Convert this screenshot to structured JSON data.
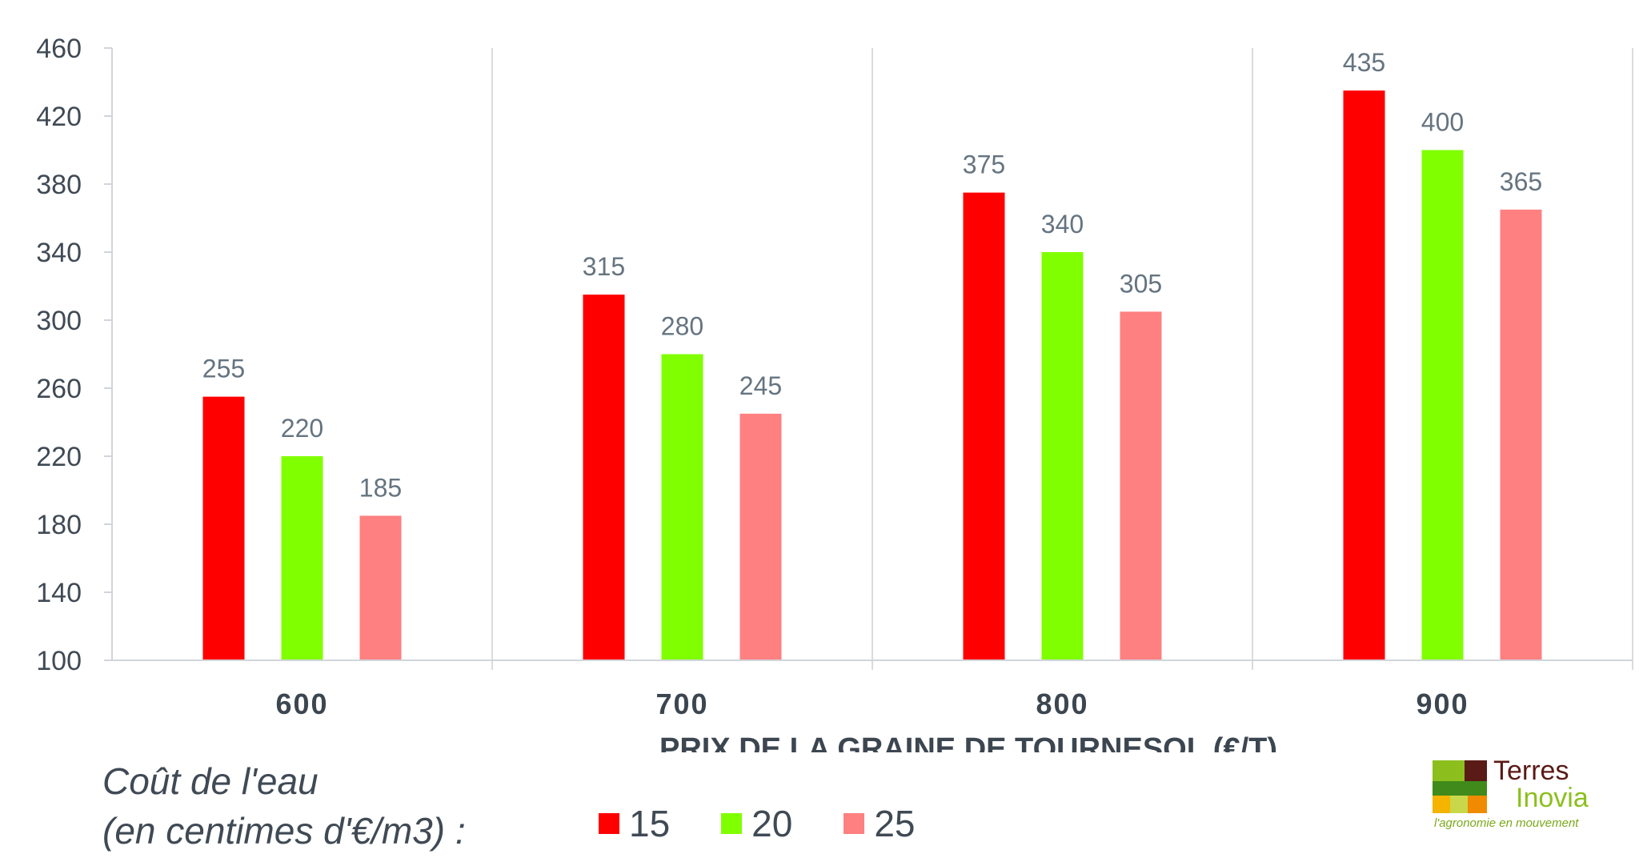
{
  "chart_data": {
    "type": "bar",
    "categories": [
      "600",
      "700",
      "800",
      "900"
    ],
    "series": [
      {
        "name": "15",
        "color": "#ff0000",
        "values": [
          255,
          315,
          375,
          435
        ]
      },
      {
        "name": "20",
        "color": "#80ff00",
        "values": [
          220,
          280,
          340,
          400
        ]
      },
      {
        "name": "25",
        "color": "#ff8080",
        "values": [
          185,
          245,
          305,
          365
        ]
      }
    ],
    "xlabel": "PRIX DE LA GRAINE DE TOURNESOL (€/T)",
    "ylabel": "",
    "ylim": [
      100,
      460
    ],
    "yticks": [
      100,
      140,
      180,
      220,
      260,
      300,
      340,
      380,
      420,
      460
    ],
    "grid": "vertical separators between categories",
    "legend_position": "bottom"
  },
  "legend": {
    "title_line1": "Coût de l'eau",
    "title_line2": "(en centimes d'€/m3) :"
  },
  "logo": {
    "name_line1": "Terres",
    "name_line2": "Inovia",
    "tagline": "l'agronomie en mouvement"
  }
}
